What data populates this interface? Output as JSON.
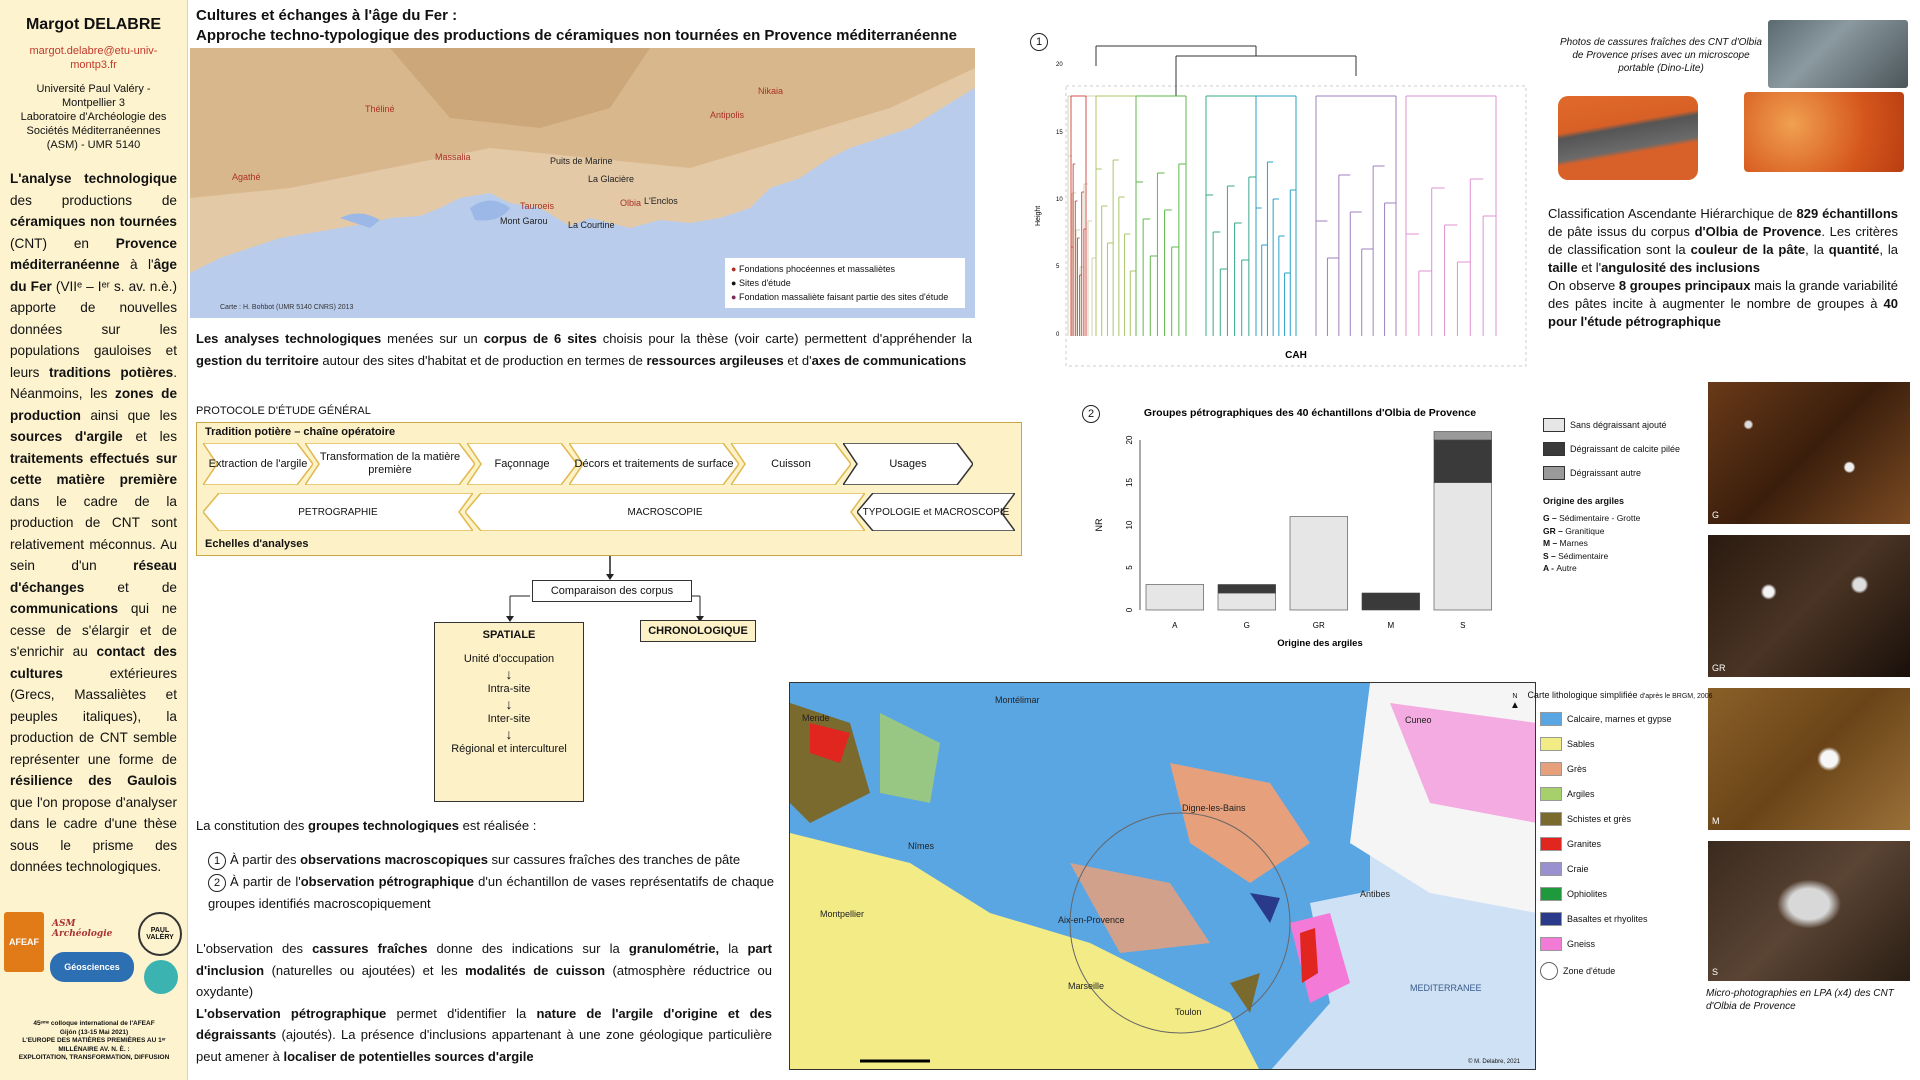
{
  "sidebar": {
    "author": "Margot DELABRE",
    "email": "margot.delabre@etu-univ-montp3.fr",
    "affiliation": [
      "Université Paul Valéry - Montpellier 3",
      "Laboratoire d'Archéologie des Sociétés Méditerranéennes (ASM) - UMR 5140"
    ],
    "intro_parts": [
      {
        "t": "L'analyse technologique",
        "b": true
      },
      {
        "t": " des productions de ",
        "b": false
      },
      {
        "t": "céramiques non tournées",
        "b": true
      },
      {
        "t": " (CNT) en ",
        "b": false
      },
      {
        "t": "Provence méditerranéenne",
        "b": true
      },
      {
        "t": " à l'",
        "b": false
      },
      {
        "t": "âge du Fer",
        "b": true
      },
      {
        "t": " (VIIᵉ – Iᵉʳ s. av. n.è.) apporte de nouvelles données sur les populations gauloises et leurs ",
        "b": false
      },
      {
        "t": "traditions potières",
        "b": true
      },
      {
        "t": ". Néanmoins, les ",
        "b": false
      },
      {
        "t": "zones de production",
        "b": true
      },
      {
        "t": " ainsi que les ",
        "b": false
      },
      {
        "t": "sources d'argile",
        "b": true
      },
      {
        "t": " et les ",
        "b": false
      },
      {
        "t": "traitements effectués sur cette matière première",
        "b": true
      },
      {
        "t": " dans le cadre de la production de CNT sont relativement méconnus. Au sein d'un ",
        "b": false
      },
      {
        "t": "réseau d'échanges",
        "b": true
      },
      {
        "t": " et de ",
        "b": false
      },
      {
        "t": "communications",
        "b": true
      },
      {
        "t": " qui ne cesse de s'élargir et de s'enrichir au ",
        "b": false
      },
      {
        "t": "contact des cultures",
        "b": true
      },
      {
        "t": " extérieures (Grecs, Massaliètes et peuples italiques), la production de CNT semble représenter une forme de ",
        "b": false
      },
      {
        "t": "résilience des Gaulois",
        "b": true
      },
      {
        "t": " que l'on propose d'analyser dans le cadre d'une thèse sous le prisme des données technologiques.",
        "b": false
      }
    ],
    "logos": [
      "AFEAF",
      "ASM Archéologie",
      "PAUL VALÉRY",
      "Géosciences"
    ],
    "colloque": [
      "45ᵉᵐᵉ colloque international de l'AFEAF",
      "Gijón (13-15 Mai 2021)",
      "L'EUROPE DES MATIÈRES PREMIÈRES AU 1ᵉʳ",
      "MILLÉNAIRE AV. N. È. :",
      "EXPLOITATION, TRANSFORMATION, DIFFUSION"
    ]
  },
  "title": [
    "Cultures et échanges à l'âge du Fer :",
    "Approche techno-typologique des productions de céramiques non tournées en Provence méditerranéenne"
  ],
  "map1": {
    "sites_red": [
      "Théliné",
      "Massalia",
      "Agathé",
      "Antipolis",
      "Nikaia",
      "Tauroeis",
      "Olbia"
    ],
    "sites_black": [
      "Puits de Marine",
      "La Glacière",
      "L'Enclos",
      "Mont Garou",
      "La Courtine"
    ],
    "legend": [
      "Fondations phocéennes et massaliètes",
      "Sites d'étude",
      "Fondation massaliète faisant partie des sites d'étude"
    ],
    "credit": "Carte : H. Bohbot (UMR 5140 CNRS) 2013"
  },
  "para1_parts": [
    {
      "t": "Les analyses technologiques",
      "b": true
    },
    {
      "t": " menées sur un ",
      "b": false
    },
    {
      "t": "corpus de 6 sites",
      "b": true
    },
    {
      "t": " choisis pour la thèse (voir carte) permettent d'appréhender la ",
      "b": false
    },
    {
      "t": "gestion du territoire",
      "b": true
    },
    {
      "t": " autour des sites d'habitat et de production en termes de ",
      "b": false
    },
    {
      "t": "ressources argileuses",
      "b": true
    },
    {
      "t": " et d'",
      "b": false
    },
    {
      "t": "axes de communications",
      "b": true
    }
  ],
  "protocol": {
    "label": "PROTOCOLE D'ÉTUDE GÉNÉRAL",
    "heading": "Tradition potière – chaîne opératoire",
    "steps": [
      "Extraction de l'argile",
      "Transformation de la matière première",
      "Façonnage",
      "Décors et traitements de surface",
      "Cuisson",
      "Usages"
    ],
    "analyses": [
      "PETROGRAPHIE",
      "MACROSCOPIE",
      "TYPOLOGIE et MACROSCOPIE"
    ],
    "footer": "Echelles d'analyses"
  },
  "flow": {
    "compare": "Comparaison des corpus",
    "spatiale": "SPATIALE",
    "chrono": "CHRONOLOGIQUE",
    "levels": [
      "Unité d'occupation",
      "Intra-site",
      "Inter-site",
      "Régional et interculturel"
    ]
  },
  "para2": {
    "intro_parts": [
      {
        "t": "La constitution des ",
        "b": false
      },
      {
        "t": "groupes technologiques",
        "b": true
      },
      {
        "t": " est réalisée :",
        "b": false
      }
    ],
    "item1_parts": [
      {
        "t": "À partir des ",
        "b": false
      },
      {
        "t": "observations macroscopiques",
        "b": true
      },
      {
        "t": " sur cassures fraîches des tranches de pâte",
        "b": false
      }
    ],
    "item2_parts": [
      {
        "t": "À partir de l'",
        "b": false
      },
      {
        "t": "observation pétrographique",
        "b": true
      },
      {
        "t": " d'un échantillon de vases représentatifs de chaque groupes identifiés macroscopiquement",
        "b": false
      }
    ]
  },
  "para3_parts": [
    {
      "t": "L'observation des ",
      "b": false
    },
    {
      "t": "cassures fraîches",
      "b": true
    },
    {
      "t": " donne des indications sur la ",
      "b": false
    },
    {
      "t": "granulométrie,",
      "b": true
    },
    {
      "t": " la ",
      "b": false
    },
    {
      "t": "part d'inclusion",
      "b": true
    },
    {
      "t": " (naturelles ou ajoutées) et les ",
      "b": false
    },
    {
      "t": "modalités de cuisson",
      "b": true
    },
    {
      "t": " (atmosphère réductrice ou oxydante)",
      "b": false
    },
    {
      "t": "\n",
      "b": false
    },
    {
      "t": "L'observation pétrographique",
      "b": true
    },
    {
      "t": " permet d'identifier la ",
      "b": false
    },
    {
      "t": "nature de l'argile d'origine et des dégraissants",
      "b": true
    },
    {
      "t": " (ajoutés). La présence d'inclusions appartenant à une zone géologique particulière peut amener à ",
      "b": false
    },
    {
      "t": "localiser de potentielles sources d'argile",
      "b": true
    }
  ],
  "dendrogram": {
    "number": "1",
    "xlabel": "CAH",
    "ylabel": "Height",
    "yticks": [
      "0",
      "5",
      "10",
      "15",
      "20"
    ]
  },
  "photo_caption": "Photos de cassures fraîches des CNT d'Olbia de Provence prises avec un microscope portable (Dino-Lite)",
  "cah_text_parts": [
    {
      "t": "Classification Ascendante Hiérarchique de ",
      "b": false
    },
    {
      "t": "829 échantillons",
      "b": true
    },
    {
      "t": " de pâte issus du corpus ",
      "b": false
    },
    {
      "t": "d'Olbia de Provence",
      "b": true
    },
    {
      "t": ". Les critères de classification sont la ",
      "b": false
    },
    {
      "t": "couleur de la pâte",
      "b": true
    },
    {
      "t": ", la ",
      "b": false
    },
    {
      "t": "quantité",
      "b": true
    },
    {
      "t": ", la ",
      "b": false
    },
    {
      "t": "taille",
      "b": true
    },
    {
      "t": " et l'",
      "b": false
    },
    {
      "t": "angulosité des inclusions",
      "b": true
    },
    {
      "t": "\nOn observe ",
      "b": false
    },
    {
      "t": "8 groupes principaux",
      "b": true
    },
    {
      "t": " mais la grande variabilité des pâtes incite à augmenter le nombre de groupes à ",
      "b": false
    },
    {
      "t": "40 pour l'étude pétrographique",
      "b": true
    }
  ],
  "chart_data": {
    "type": "bar",
    "title": "Groupes pétrographiques des 40 échantillons d'Olbia de Provence",
    "number": "2",
    "categories": [
      "A",
      "G",
      "GR",
      "M",
      "S"
    ],
    "series": [
      {
        "name": "Sans dégraissant ajouté",
        "color": "#e6e6e6",
        "values": [
          3,
          2,
          11,
          0,
          15
        ]
      },
      {
        "name": "Dégraissant de calcite pilée",
        "color": "#3a3a3a",
        "values": [
          0,
          1,
          0,
          2,
          5
        ]
      },
      {
        "name": "Dégraissant autre",
        "color": "#9a9a9a",
        "values": [
          0,
          0,
          0,
          0,
          1
        ]
      }
    ],
    "stacked": true,
    "xlabel": "Origine des argiles",
    "ylabel": "NR",
    "ylim": [
      0,
      20
    ],
    "yticks": [
      0,
      5,
      10,
      15,
      20
    ]
  },
  "origins": {
    "heading": "Origine des argiles",
    "items": [
      [
        "G –",
        "Sédimentaire - Grotte"
      ],
      [
        "GR –",
        "Granitique"
      ],
      [
        "M –",
        "Marnes"
      ],
      [
        "S –",
        "Sédimentaire"
      ],
      [
        "A -",
        "Autre"
      ]
    ]
  },
  "micro": {
    "labels": [
      "G",
      "GR",
      "M",
      "S"
    ],
    "caption": "Micro-photographies en LPA (x4) des CNT d'Olbia de Provence"
  },
  "map2": {
    "title": "Carte lithologique simplifiée",
    "subtitle": "d'après le BRGM, 2006",
    "cities": [
      "Cuneo",
      "Mende",
      "Montélimar",
      "Digne-les-Bains",
      "Nîmes",
      "Montpellier",
      "Aix-en-Provence",
      "Antibes",
      "Marseille",
      "Toulon"
    ],
    "sea": "MEDITERRANEE",
    "north": "N",
    "credit": "© M. Delabre, 2021",
    "legend": [
      {
        "label": "Calcaire, marnes et gypse",
        "color": "#5aa6e3"
      },
      {
        "label": "Sables",
        "color": "#f3ec86"
      },
      {
        "label": "Grès",
        "color": "#e6a07c"
      },
      {
        "label": "Argiles",
        "color": "#a7cf6c"
      },
      {
        "label": "Schistes et grès",
        "color": "#7a6a2e"
      },
      {
        "label": "Granites",
        "color": "#e0261f"
      },
      {
        "label": "Craie",
        "color": "#9a92d0"
      },
      {
        "label": "Ophiolites",
        "color": "#1e9a3c"
      },
      {
        "label": "Basaltes et rhyolites",
        "color": "#2a3a8a"
      },
      {
        "label": "Gneiss",
        "color": "#f37ad6"
      },
      {
        "label": "Zone d'étude",
        "color": "#ffffff"
      }
    ]
  }
}
